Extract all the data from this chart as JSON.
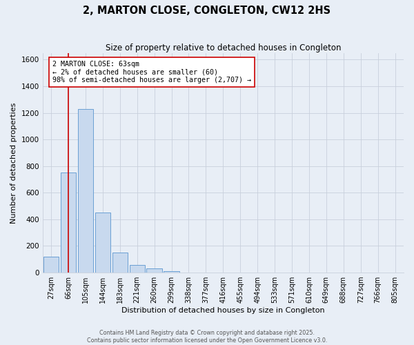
{
  "title": "2, MARTON CLOSE, CONGLETON, CW12 2HS",
  "subtitle": "Size of property relative to detached houses in Congleton",
  "xlabel": "Distribution of detached houses by size in Congleton",
  "ylabel": "Number of detached properties",
  "bin_labels": [
    "27sqm",
    "66sqm",
    "105sqm",
    "144sqm",
    "183sqm",
    "221sqm",
    "260sqm",
    "299sqm",
    "338sqm",
    "377sqm",
    "416sqm",
    "455sqm",
    "494sqm",
    "533sqm",
    "571sqm",
    "610sqm",
    "649sqm",
    "688sqm",
    "727sqm",
    "766sqm",
    "805sqm"
  ],
  "bar_values": [
    120,
    750,
    1230,
    450,
    150,
    58,
    33,
    10,
    0,
    0,
    0,
    0,
    0,
    0,
    0,
    0,
    0,
    0,
    0,
    0,
    0
  ],
  "bar_color": "#c8d9ee",
  "bar_edge_color": "#6a9fd4",
  "grid_color": "#c8d0dc",
  "background_color": "#e8eef6",
  "red_line_x": 1,
  "annotation_text": "2 MARTON CLOSE: 63sqm\n← 2% of detached houses are smaller (60)\n98% of semi-detached houses are larger (2,707) →",
  "annotation_box_facecolor": "#ffffff",
  "annotation_box_edgecolor": "#cc0000",
  "ylim": [
    0,
    1650
  ],
  "yticks": [
    0,
    200,
    400,
    600,
    800,
    1000,
    1200,
    1400,
    1600
  ],
  "footer_line1": "Contains HM Land Registry data © Crown copyright and database right 2025.",
  "footer_line2": "Contains public sector information licensed under the Open Government Licence v3.0."
}
